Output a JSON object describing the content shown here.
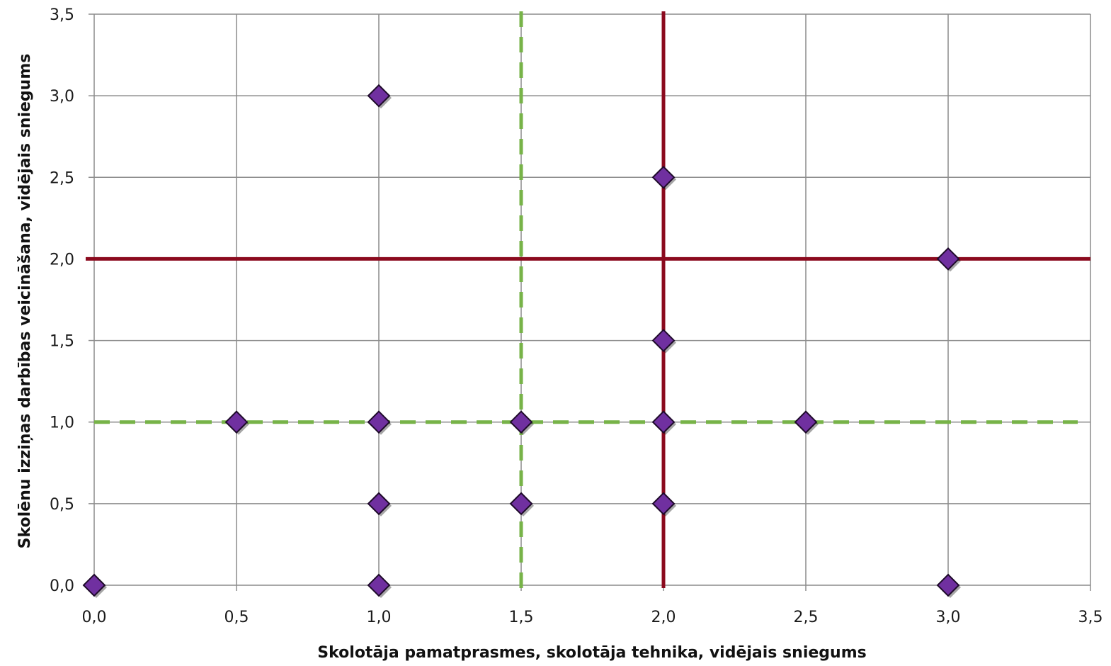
{
  "chart_data": {
    "type": "scatter",
    "title": "",
    "xlabel": "Skolotāja pamatprasmes, skolotāja tehnika, vidējais sniegums",
    "ylabel": "Skolēnu izziņas darbības veicināšana, vidējais sniegums",
    "xlim": [
      0,
      3.5
    ],
    "ylim": [
      0,
      3.5
    ],
    "x_ticks": [
      "0,0",
      "0,5",
      "1,0",
      "1,5",
      "2,0",
      "2,5",
      "3,0",
      "3,5"
    ],
    "y_ticks": [
      "0,0",
      "0,5",
      "1,0",
      "1,5",
      "2,0",
      "2,5",
      "3,0",
      "3,5"
    ],
    "grid": true,
    "legend": "none",
    "series": [
      {
        "marker": "diamond",
        "color": "#7030A0",
        "points": [
          {
            "x": 0.0,
            "y": 0.0
          },
          {
            "x": 0.5,
            "y": 1.0
          },
          {
            "x": 1.0,
            "y": 3.0
          },
          {
            "x": 1.0,
            "y": 1.0
          },
          {
            "x": 1.0,
            "y": 0.5
          },
          {
            "x": 1.0,
            "y": 0.0
          },
          {
            "x": 1.5,
            "y": 1.0
          },
          {
            "x": 1.5,
            "y": 0.5
          },
          {
            "x": 2.0,
            "y": 2.5
          },
          {
            "x": 2.0,
            "y": 1.5
          },
          {
            "x": 2.0,
            "y": 1.0
          },
          {
            "x": 2.0,
            "y": 0.5
          },
          {
            "x": 2.5,
            "y": 1.0
          },
          {
            "x": 3.0,
            "y": 2.0
          },
          {
            "x": 3.0,
            "y": 0.0
          }
        ]
      }
    ],
    "reference_lines": [
      {
        "orientation": "vertical",
        "value": 2.0,
        "style": "solid",
        "color": "#8B0A1E"
      },
      {
        "orientation": "horizontal",
        "value": 2.0,
        "style": "solid",
        "color": "#8B0A1E"
      },
      {
        "orientation": "vertical",
        "value": 1.5,
        "style": "dashed",
        "color": "#77B348"
      },
      {
        "orientation": "horizontal",
        "value": 1.0,
        "style": "dashed",
        "color": "#77B348"
      }
    ]
  }
}
